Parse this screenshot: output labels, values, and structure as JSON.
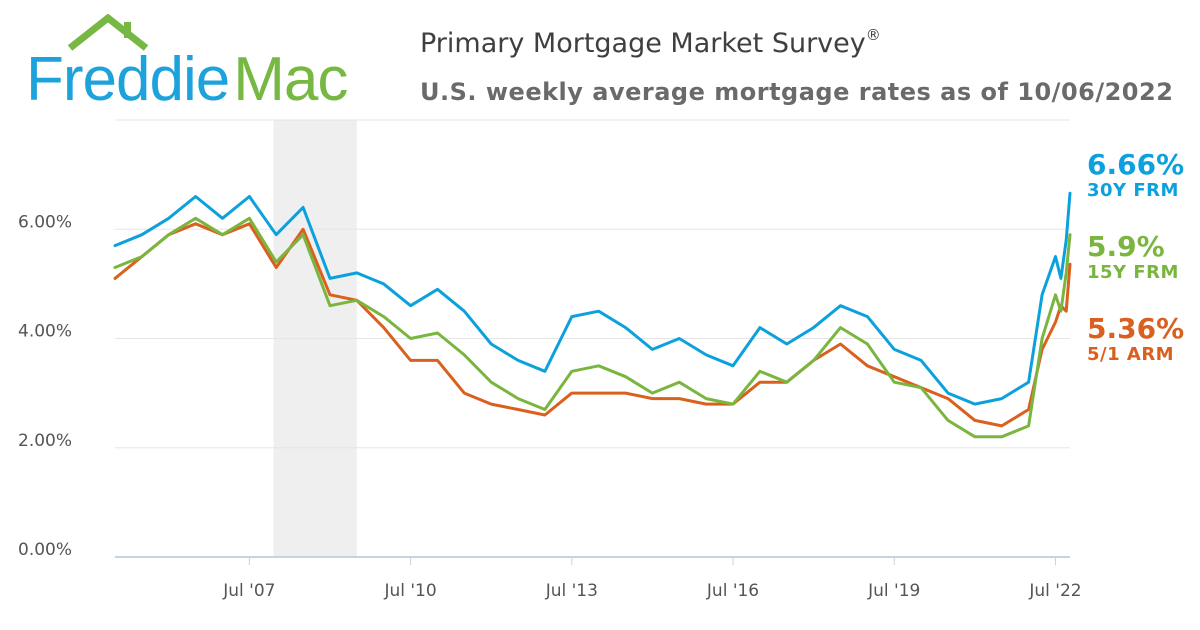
{
  "logo": {
    "text_freddie": "Freddie",
    "text_mac": "Mac",
    "blue": "#1ea2dc",
    "green": "#76b843"
  },
  "title": "Primary Mortgage Market Survey",
  "title_mark": "®",
  "subtitle": "U.S. weekly average mortgage rates as of 10/06/2022",
  "colors": {
    "frm30": "#0ca1dc",
    "frm15": "#7ab63f",
    "arm51": "#d9601e",
    "grid": "#e6e6e6",
    "shade": "#efefef",
    "axis": "#c6d3e3",
    "label": "#555555"
  },
  "end_labels": [
    {
      "value": "6.66%",
      "name": "30Y FRM",
      "color": "#0ca1dc"
    },
    {
      "value": "5.9%",
      "name": "15Y FRM",
      "color": "#7ab63f"
    },
    {
      "value": "5.36%",
      "name": "5/1 ARM",
      "color": "#d9601e"
    }
  ],
  "chart_data": {
    "type": "line",
    "title": "Primary Mortgage Market Survey",
    "subtitle": "U.S. weekly average mortgage rates as of 10/06/2022",
    "xlabel": "",
    "ylabel": "",
    "x_range": [
      2005.0,
      2022.77
    ],
    "ylim": [
      0,
      8
    ],
    "y_ticks": [
      0,
      2,
      4,
      6
    ],
    "y_tick_labels": [
      "0.00%",
      "2.00%",
      "4.00%",
      "6.00%"
    ],
    "x_ticks": [
      2007.5,
      2010.5,
      2013.5,
      2016.5,
      2019.5,
      2022.5
    ],
    "x_tick_labels": [
      "Jul '07",
      "Jul '10",
      "Jul '13",
      "Jul '16",
      "Jul '19",
      "Jul '22"
    ],
    "grid": true,
    "legend": "none (end-of-line labels on right)",
    "shaded_region": [
      2007.95,
      2009.5
    ],
    "x": [
      2005.0,
      2005.5,
      2006.0,
      2006.5,
      2007.0,
      2007.5,
      2008.0,
      2008.5,
      2009.0,
      2009.5,
      2010.0,
      2010.5,
      2011.0,
      2011.5,
      2012.0,
      2012.5,
      2013.0,
      2013.5,
      2014.0,
      2014.5,
      2015.0,
      2015.5,
      2016.0,
      2016.5,
      2017.0,
      2017.5,
      2018.0,
      2018.5,
      2019.0,
      2019.5,
      2020.0,
      2020.5,
      2021.0,
      2021.5,
      2022.0,
      2022.25,
      2022.5,
      2022.6,
      2022.7,
      2022.77
    ],
    "series": [
      {
        "name": "30Y FRM",
        "values": [
          5.7,
          5.9,
          6.2,
          6.6,
          6.2,
          6.6,
          5.9,
          6.4,
          5.1,
          5.2,
          5.0,
          4.6,
          4.9,
          4.5,
          3.9,
          3.6,
          3.4,
          4.4,
          4.5,
          4.2,
          3.8,
          4.0,
          3.7,
          3.5,
          4.2,
          3.9,
          4.2,
          4.6,
          4.4,
          3.8,
          3.6,
          3.0,
          2.8,
          2.9,
          3.2,
          4.8,
          5.5,
          5.1,
          5.8,
          6.66
        ]
      },
      {
        "name": "15Y FRM",
        "values": [
          5.3,
          5.5,
          5.9,
          6.2,
          5.9,
          6.2,
          5.4,
          5.9,
          4.6,
          4.7,
          4.4,
          4.0,
          4.1,
          3.7,
          3.2,
          2.9,
          2.7,
          3.4,
          3.5,
          3.3,
          3.0,
          3.2,
          2.9,
          2.8,
          3.4,
          3.2,
          3.6,
          4.2,
          3.9,
          3.2,
          3.1,
          2.5,
          2.2,
          2.2,
          2.4,
          4.0,
          4.8,
          4.5,
          5.2,
          5.9
        ]
      },
      {
        "name": "5/1 ARM",
        "values": [
          5.1,
          5.5,
          5.9,
          6.1,
          5.9,
          6.1,
          5.3,
          6.0,
          4.8,
          4.7,
          4.2,
          3.6,
          3.6,
          3.0,
          2.8,
          2.7,
          2.6,
          3.0,
          3.0,
          3.0,
          2.9,
          2.9,
          2.8,
          2.8,
          3.2,
          3.2,
          3.6,
          3.9,
          3.5,
          3.3,
          3.1,
          2.9,
          2.5,
          2.4,
          2.7,
          3.8,
          4.3,
          4.6,
          4.5,
          5.36
        ]
      }
    ]
  }
}
